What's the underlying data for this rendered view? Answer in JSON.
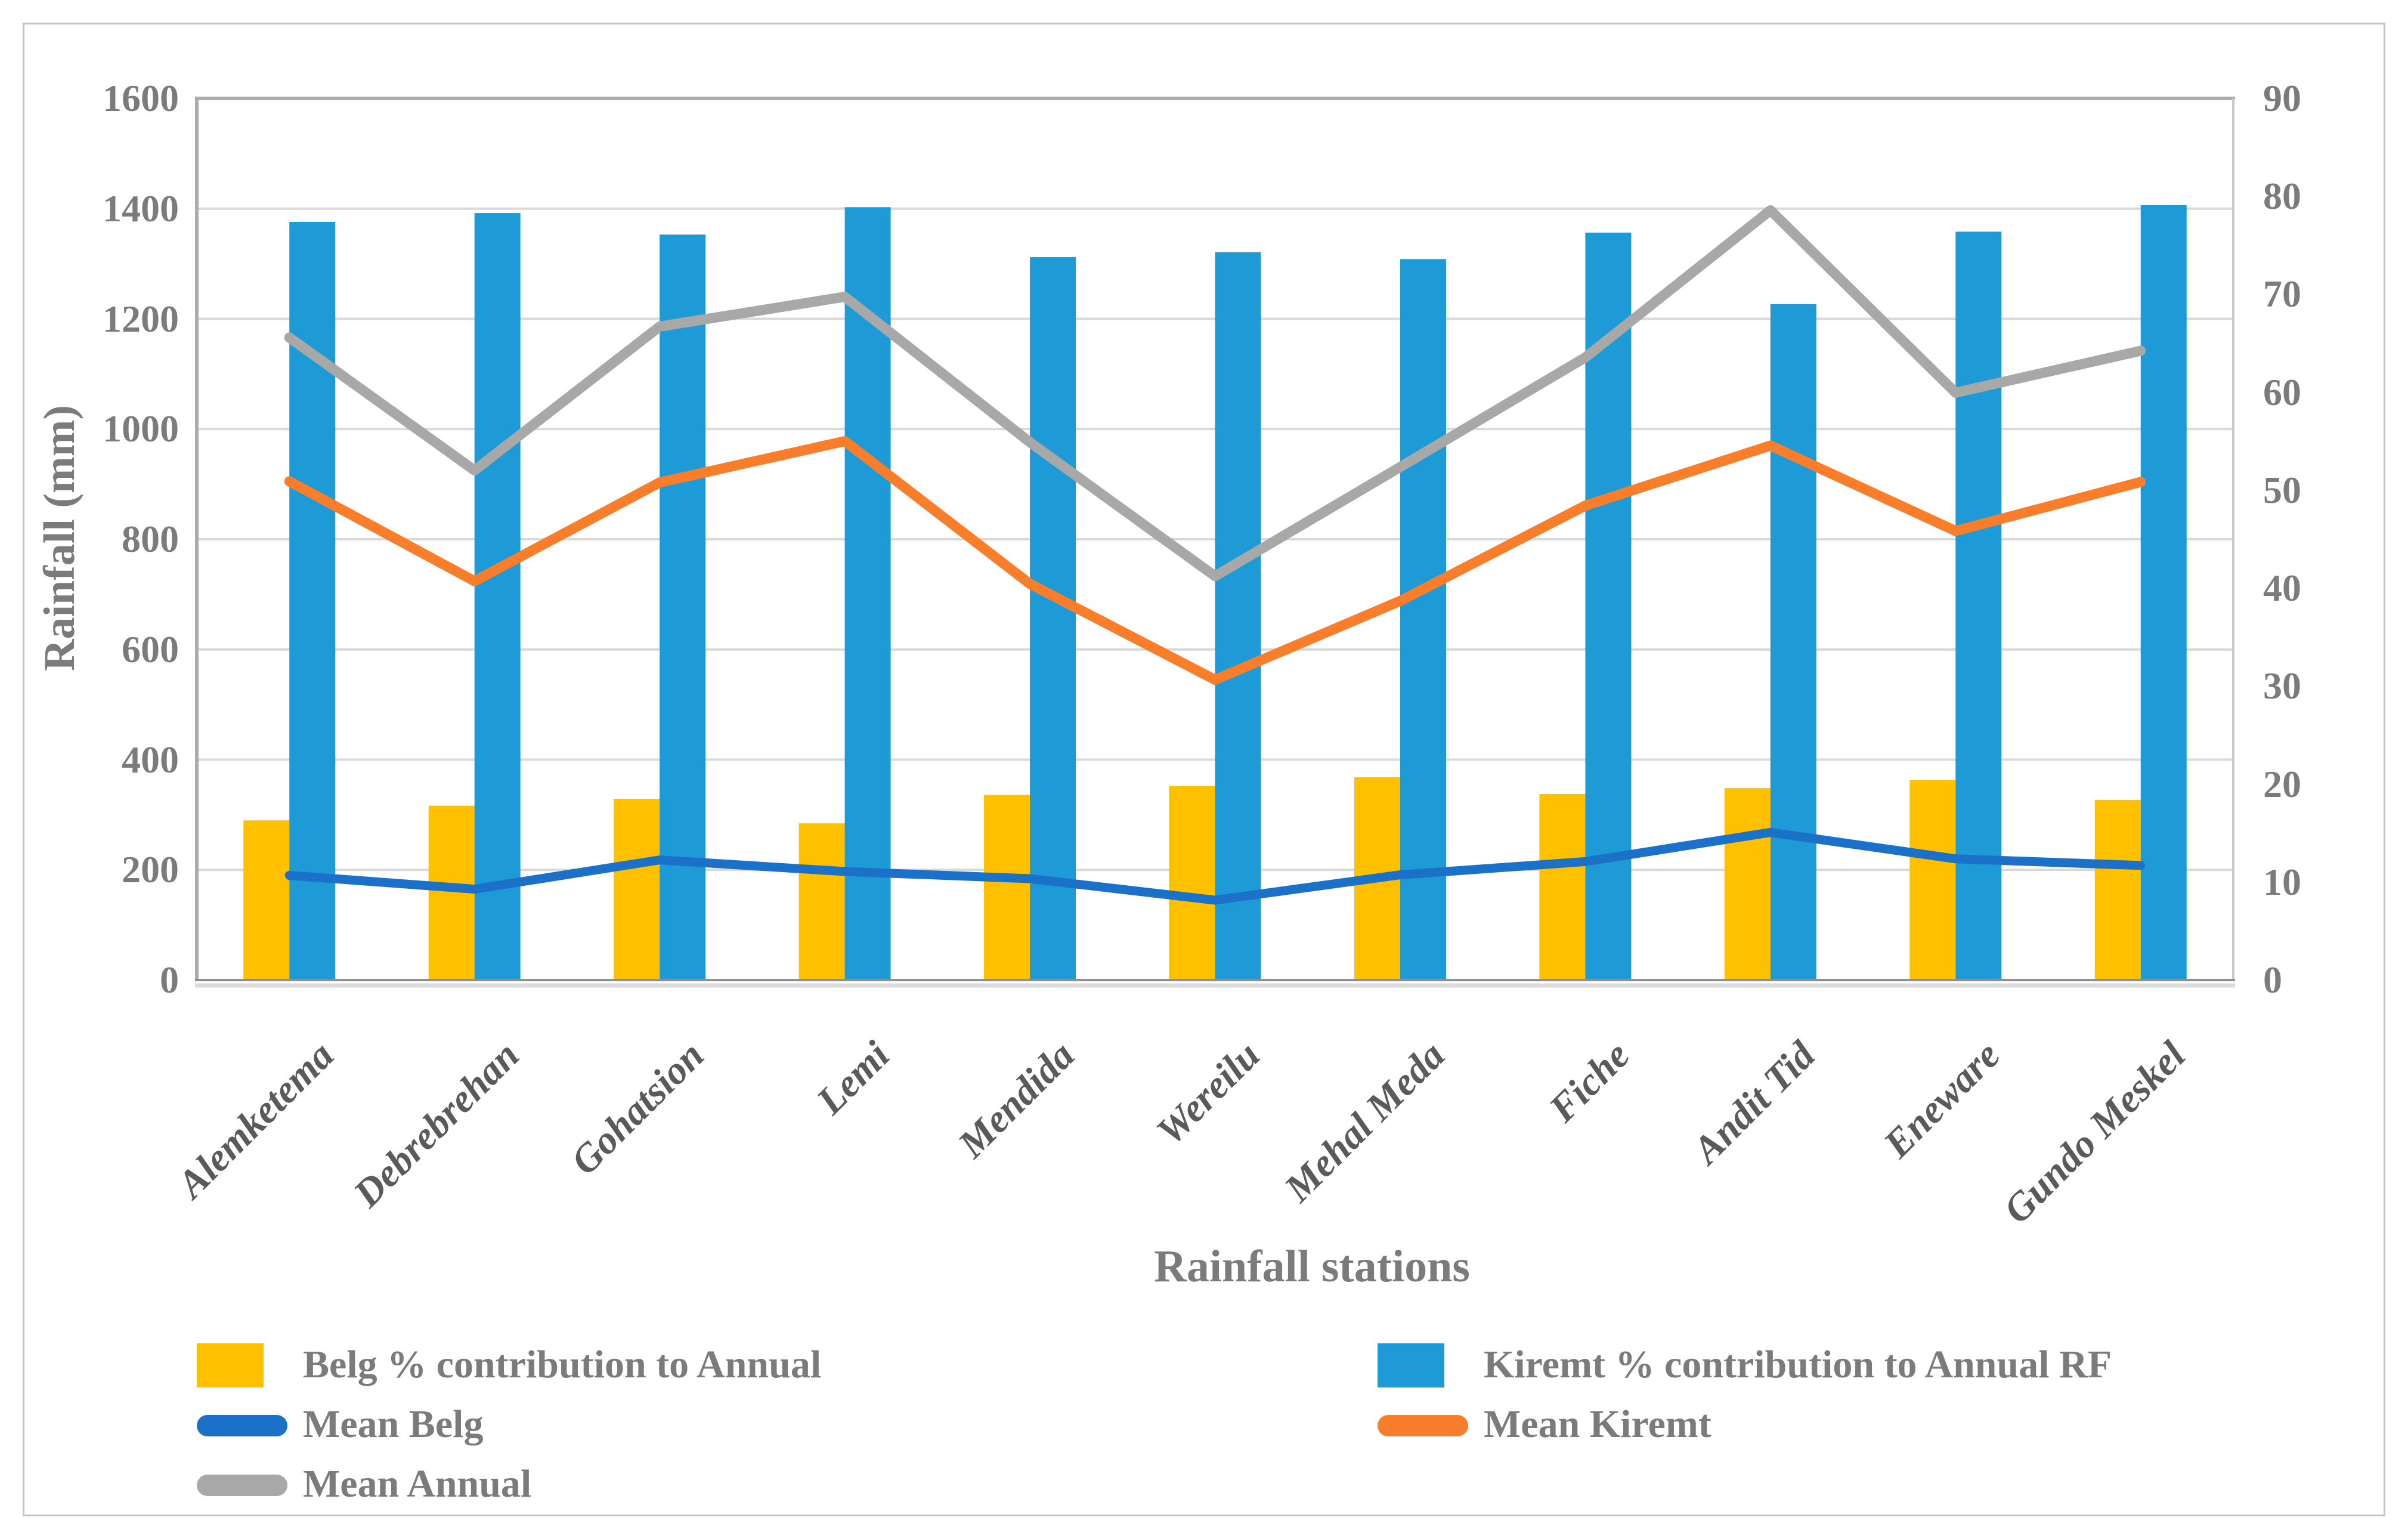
{
  "figure": {
    "y_axis_left": {
      "title": "Rainfall (mm)",
      "min": 0,
      "max": 1600,
      "step": 200,
      "tick_labels": [
        "0",
        "200",
        "400",
        "600",
        "800",
        "1000",
        "1200",
        "1400",
        "1600"
      ]
    },
    "y_axis_right": {
      "min": 0,
      "max": 90,
      "step": 10,
      "tick_labels": [
        "0",
        "10",
        "20",
        "30",
        "40",
        "50",
        "60",
        "70",
        "80",
        "90"
      ]
    },
    "x_axis": {
      "title": "Rainfall stations"
    },
    "colors": {
      "belg_bar": "#FFC000",
      "kiremt_bar": "#1E9BD7",
      "mean_belg_line": "#1B70C8",
      "mean_kiremt_line": "#F87E2B",
      "mean_annual_line": "#A8A8A8",
      "gridline": "#D9D9D9",
      "plot_border": "#ACACAC",
      "axis_text": "#7B7B7B"
    }
  },
  "chart_data": {
    "type": "bar+line combo",
    "title": "",
    "xlabel": "Rainfall stations",
    "ylabel": "Rainfall (mm)",
    "ylim_left": [
      0,
      1600
    ],
    "ylim_right": [
      0,
      90
    ],
    "grid": true,
    "legend_position": "bottom",
    "categories": [
      "Alemketema",
      "Debrebrehan",
      "Gohatsion",
      "Lemi",
      "Mendida",
      "Wereilu",
      "Mehal Meda",
      "Fiche",
      "Andit Tid",
      "Eneware",
      "Gundo Meskel"
    ],
    "series": [
      {
        "name": "Belg % contribution to Annual",
        "type": "bar",
        "axis": "right",
        "color": "#FFC000",
        "values": [
          16.3,
          17.8,
          18.5,
          16.0,
          18.9,
          19.8,
          20.7,
          19.0,
          19.6,
          20.4,
          18.4
        ]
      },
      {
        "name": "Kiremt % contribution to Annual RF",
        "type": "bar",
        "axis": "right",
        "color": "#1E9BD7",
        "values": [
          77.4,
          78.3,
          76.1,
          78.9,
          73.8,
          74.3,
          73.6,
          76.3,
          69.0,
          76.4,
          79.1
        ]
      },
      {
        "name": "Mean Belg",
        "type": "line",
        "axis": "left",
        "color": "#1B70C8",
        "values": [
          190,
          165,
          218,
          197,
          184,
          145,
          191,
          215,
          268,
          220,
          208
        ]
      },
      {
        "name": "Mean Kiremt",
        "type": "line",
        "axis": "left",
        "color": "#F87E2B",
        "values": [
          905,
          724,
          903,
          978,
          719,
          545,
          688,
          861,
          970,
          815,
          904
        ]
      },
      {
        "name": "Mean Annual",
        "type": "line",
        "axis": "left",
        "color": "#A8A8A8",
        "values": [
          1166,
          925,
          1186,
          1240,
          976,
          733,
          931,
          1130,
          1397,
          1066,
          1142
        ]
      }
    ]
  }
}
